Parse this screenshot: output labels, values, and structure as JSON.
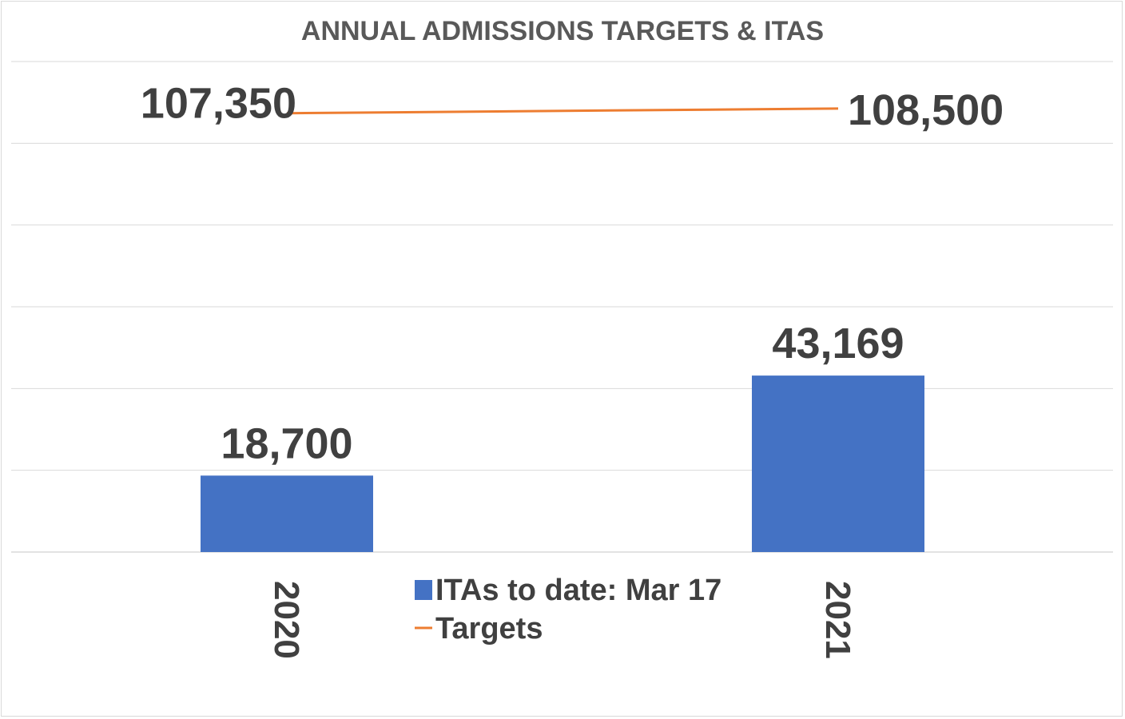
{
  "chart_data": {
    "type": "bar",
    "title": "ANNUAL ADMISSIONS TARGETS & ITAS",
    "categories": [
      "2020",
      "2021"
    ],
    "series": [
      {
        "name": "ITAs to date: Mar 17",
        "type": "bar",
        "values": [
          18700,
          43169
        ],
        "labels": [
          "18,700",
          "43,169"
        ],
        "color": "#4472C4"
      },
      {
        "name": "Targets",
        "type": "line",
        "values": [
          107350,
          108500
        ],
        "labels": [
          "107,350",
          "108,500"
        ],
        "color": "#ED7D31"
      }
    ],
    "ylim": [
      0,
      120000
    ],
    "grid": true,
    "legend": "bottom-center",
    "gridline_color": "#d9d9d9"
  }
}
